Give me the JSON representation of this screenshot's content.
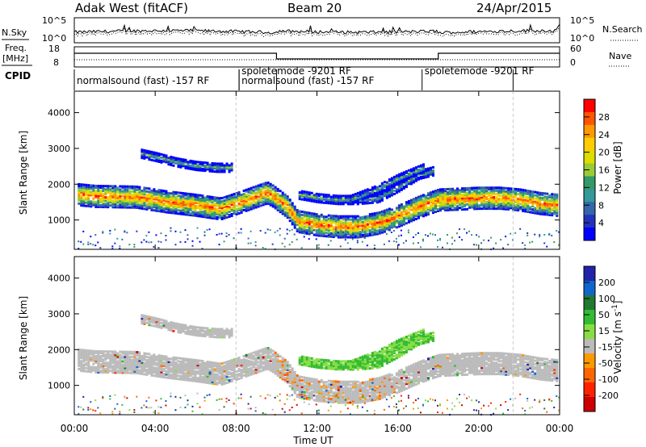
{
  "header": {
    "station": "Adak West (fitACF)",
    "beam": "Beam 20",
    "date": "24/Apr/2015"
  },
  "top_panels": {
    "nsky_label": "N.Sky",
    "nsky_ticks": [
      "10^5",
      "10^0"
    ],
    "nsearch_label": "N.Search",
    "nsearch_ticks": [
      "10^5",
      "10^0"
    ],
    "freq_label": "Freq.",
    "freq_unit": "[MHz]",
    "freq_ticks": [
      "18",
      "8"
    ],
    "nave_label": "Nave",
    "nave_ticks": [
      "60",
      "0"
    ],
    "cpid_label": "CPID",
    "cpid_segments": [
      {
        "label": "normalsound (fast) -157 RF",
        "start_hour": 0.0
      },
      {
        "label": "spoletemode -9201 RF",
        "start_hour": 8.15
      },
      {
        "label": "normalsound (fast) -157 RF",
        "start_hour": 8.15
      },
      {
        "label": "spoletemode -9201 RF",
        "start_hour": 17.2
      }
    ]
  },
  "chart_data": [
    {
      "type": "heatmap",
      "panel": "power",
      "ylabel": "Slant Range [km]",
      "yticks": [
        1000,
        2000,
        3000,
        4000
      ],
      "ylim": [
        180,
        4600
      ],
      "colorbar": {
        "label": "Power [dB]",
        "ticks": [
          "28",
          "24",
          "20",
          "16",
          "12",
          "8",
          "4"
        ],
        "colors": [
          "#ff0000",
          "#ff5500",
          "#ff9900",
          "#ffcc00",
          "#dddd00",
          "#99cc33",
          "#339966",
          "#339999",
          "#3366aa",
          "#2233bb",
          "#0000ff"
        ]
      }
    },
    {
      "type": "heatmap",
      "panel": "velocity",
      "ylabel": "Slant Range [km]",
      "yticks": [
        1000,
        2000,
        3000,
        4000
      ],
      "ylim": [
        180,
        4600
      ],
      "xlabel": "Time UT",
      "xticks": [
        "00:00",
        "04:00",
        "08:00",
        "12:00",
        "16:00",
        "20:00",
        "00:00"
      ],
      "xlim_hours": [
        0,
        24
      ],
      "colorbar": {
        "label": "Velocity [m s^-1]",
        "ticks": [
          "200",
          "100",
          "50",
          "15",
          "-15",
          "-50",
          "-100",
          "-200"
        ],
        "colors": [
          "#2222aa",
          "#1166cc",
          "#227733",
          "#33bb33",
          "#88dd44",
          "#bbbbbb",
          "#ff9900",
          "#ff6600",
          "#ff2200",
          "#cc0000"
        ]
      }
    }
  ],
  "bands": [
    {
      "name": "lower-echo-band",
      "points": [
        [
          0.1,
          1750
        ],
        [
          1,
          1700
        ],
        [
          3,
          1680
        ],
        [
          4.5,
          1550
        ],
        [
          6,
          1450
        ],
        [
          7.2,
          1350
        ],
        [
          8,
          1500
        ],
        [
          9.5,
          1800
        ],
        [
          9.8,
          1700
        ],
        [
          10.5,
          1400
        ],
        [
          11,
          1000
        ],
        [
          12,
          900
        ],
        [
          13,
          850
        ],
        [
          14,
          850
        ],
        [
          15,
          950
        ],
        [
          16,
          1150
        ],
        [
          17,
          1400
        ],
        [
          17.5,
          1500
        ],
        [
          18,
          1600
        ],
        [
          20,
          1650
        ],
        [
          21,
          1650
        ],
        [
          22,
          1600
        ],
        [
          23,
          1500
        ],
        [
          23.9,
          1450
        ]
      ],
      "width": 300
    },
    {
      "name": "upper-echo-band",
      "points": [
        [
          3.2,
          2900
        ],
        [
          4,
          2800
        ],
        [
          5,
          2650
        ],
        [
          6,
          2550
        ],
        [
          7,
          2500
        ],
        [
          7.8,
          2500
        ]
      ],
      "width": 120
    },
    {
      "name": "mid-echo-band",
      "points": [
        [
          11,
          1750
        ],
        [
          12,
          1650
        ],
        [
          13,
          1600
        ],
        [
          14,
          1600
        ],
        [
          15,
          1650
        ],
        [
          16,
          1950
        ],
        [
          17,
          2300
        ],
        [
          17.7,
          2400
        ]
      ],
      "width": 120
    },
    {
      "name": "rising-echo-band",
      "points": [
        [
          13.6,
          1600
        ],
        [
          15,
          1900
        ],
        [
          16,
          2200
        ],
        [
          17.3,
          2500
        ]
      ],
      "width": 120
    }
  ]
}
